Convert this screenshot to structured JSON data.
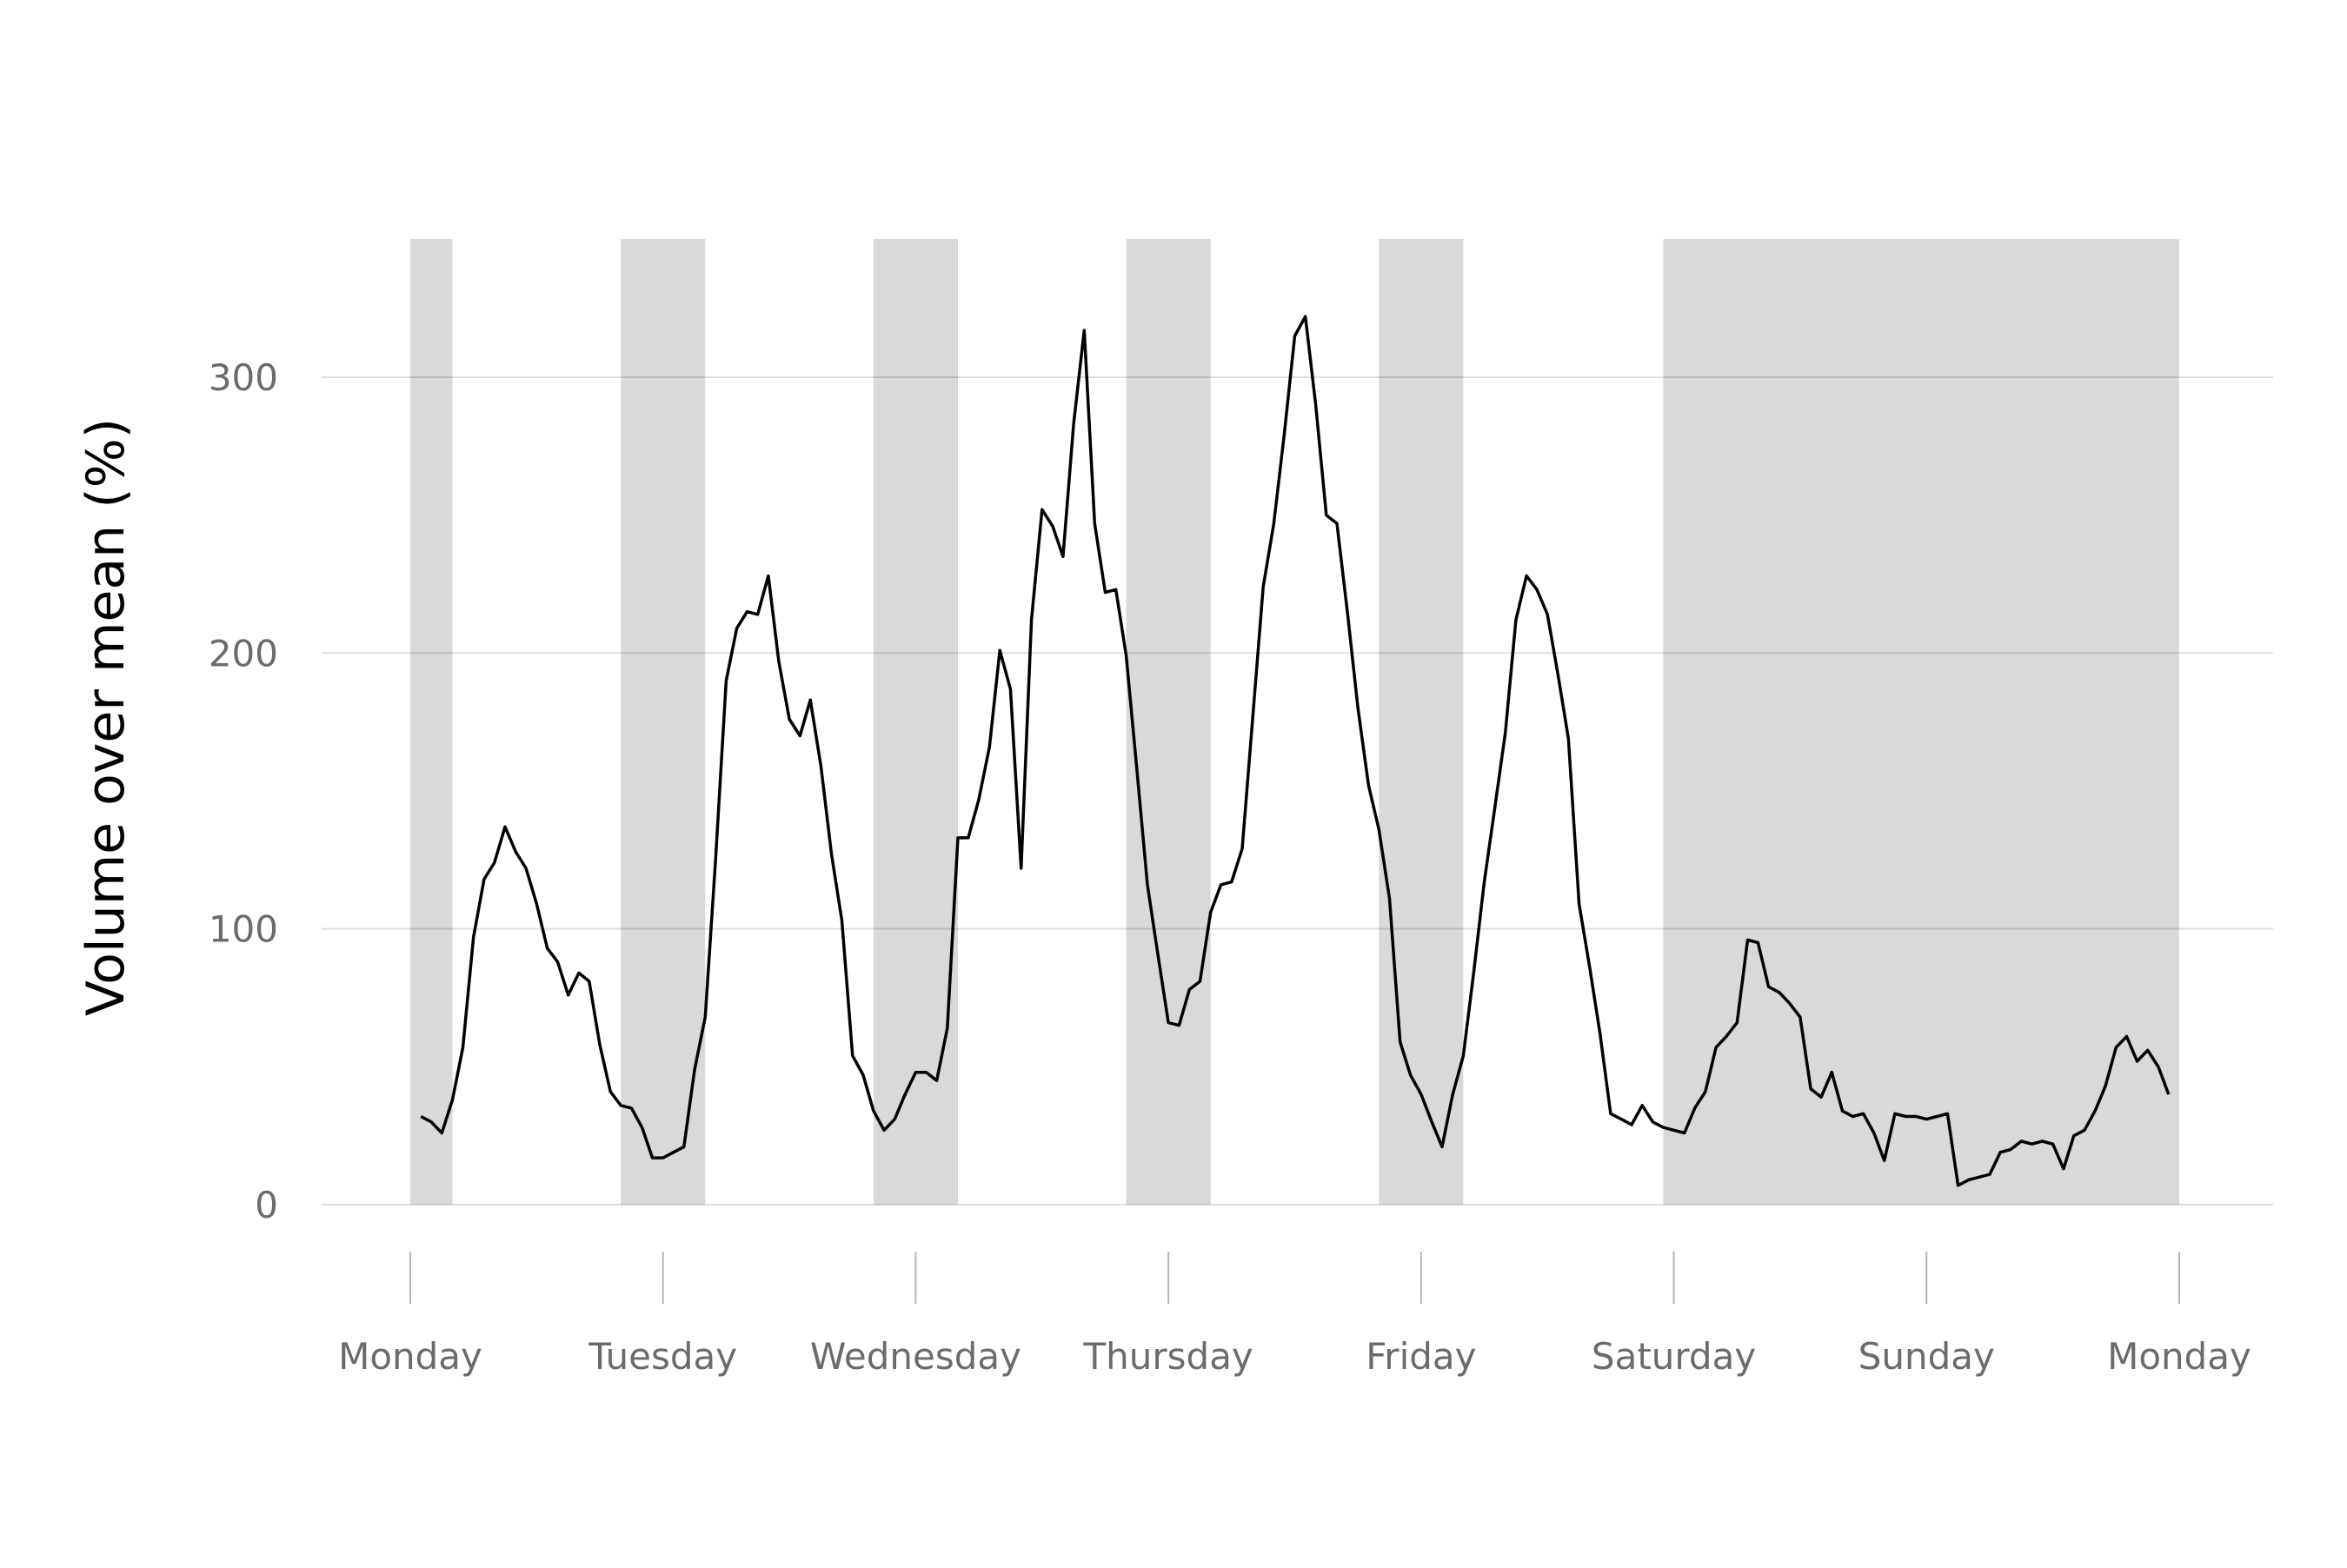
{
  "chart_data": {
    "type": "line",
    "xlabel": "",
    "ylabel": "Volume over mean (%)",
    "ylim": [
      0,
      350
    ],
    "xlim_days": [
      0,
      7
    ],
    "grid": "horizontal",
    "legend": "none",
    "colors": {
      "line": "#000000",
      "shade": "#d9d9d9",
      "grid": "#dddddd",
      "tick_text": "#6b6b6b",
      "axis_title": "#000000"
    },
    "y_ticks": [
      {
        "value": 0,
        "label": "0"
      },
      {
        "value": 100,
        "label": "100"
      },
      {
        "value": 200,
        "label": "200"
      },
      {
        "value": 300,
        "label": "300"
      }
    ],
    "x_ticks": [
      {
        "value": 0,
        "label": "Monday"
      },
      {
        "value": 1,
        "label": "Tuesday"
      },
      {
        "value": 2,
        "label": "Wednesday"
      },
      {
        "value": 3,
        "label": "Thursday"
      },
      {
        "value": 4,
        "label": "Friday"
      },
      {
        "value": 5,
        "label": "Saturday"
      },
      {
        "value": 6,
        "label": "Sunday"
      },
      {
        "value": 7,
        "label": "Monday"
      }
    ],
    "shaded_ranges": [
      {
        "start": 0.0,
        "end": 0.167
      },
      {
        "start": 0.833,
        "end": 1.167
      },
      {
        "start": 1.833,
        "end": 2.167
      },
      {
        "start": 2.833,
        "end": 3.167
      },
      {
        "start": 3.833,
        "end": 4.167
      },
      {
        "start": 4.958,
        "end": 7.0
      }
    ],
    "series": [
      {
        "x": [
          0.042,
          0.083,
          0.125,
          0.167,
          0.208,
          0.25,
          0.292,
          0.333,
          0.375,
          0.417,
          0.458,
          0.5,
          0.542,
          0.583,
          0.625,
          0.667,
          0.708,
          0.75,
          0.792,
          0.833,
          0.875,
          0.917,
          0.958,
          1.0,
          1.042,
          1.083,
          1.125,
          1.167,
          1.208,
          1.25,
          1.292,
          1.333,
          1.375,
          1.417,
          1.458,
          1.5,
          1.542,
          1.583,
          1.625,
          1.667,
          1.708,
          1.75,
          1.792,
          1.833,
          1.875,
          1.917,
          1.958,
          2.0,
          2.042,
          2.083,
          2.125,
          2.167,
          2.208,
          2.25,
          2.292,
          2.333,
          2.375,
          2.417,
          2.458,
          2.5,
          2.542,
          2.583,
          2.625,
          2.667,
          2.708,
          2.75,
          2.792,
          2.833,
          2.875,
          2.917,
          2.958,
          3.0,
          3.042,
          3.083,
          3.125,
          3.167,
          3.208,
          3.25,
          3.292,
          3.333,
          3.375,
          3.417,
          3.458,
          3.5,
          3.542,
          3.583,
          3.625,
          3.667,
          3.708,
          3.75,
          3.792,
          3.833,
          3.875,
          3.917,
          3.958,
          4.0,
          4.042,
          4.083,
          4.125,
          4.167,
          4.208,
          4.25,
          4.292,
          4.333,
          4.375,
          4.417,
          4.458,
          4.5,
          4.542,
          4.583,
          4.625,
          4.667,
          4.708,
          4.75,
          4.792,
          4.833,
          4.875,
          4.917,
          4.958,
          5.0,
          5.042,
          5.083,
          5.125,
          5.167,
          5.208,
          5.25,
          5.292,
          5.333,
          5.375,
          5.417,
          5.458,
          5.5,
          5.542,
          5.583,
          5.625,
          5.667,
          5.708,
          5.75,
          5.792,
          5.833,
          5.875,
          5.917,
          5.958,
          6.0,
          6.042,
          6.083,
          6.125,
          6.167,
          6.208,
          6.25,
          6.292,
          6.333,
          6.375,
          6.417,
          6.458,
          6.5,
          6.542,
          6.583,
          6.625,
          6.667,
          6.708,
          6.75,
          6.792,
          6.833,
          6.875,
          6.917,
          6.958
        ],
        "y": [
          32,
          30,
          26,
          38,
          57,
          97,
          118,
          124,
          137,
          128,
          122,
          109,
          93,
          88,
          76,
          84,
          81,
          58,
          41,
          36,
          35,
          28,
          17,
          17,
          19,
          21,
          49,
          68,
          125,
          190,
          209,
          215,
          214,
          228,
          197,
          176,
          170,
          183,
          159,
          127,
          103,
          54,
          47,
          34,
          27,
          31,
          40,
          48,
          48,
          45,
          64,
          133,
          133,
          147,
          166,
          201,
          187,
          122,
          212,
          252,
          246,
          235,
          283,
          317,
          247,
          222,
          223,
          199,
          158,
          116,
          91,
          66,
          65,
          78,
          81,
          106,
          116,
          117,
          129,
          176,
          224,
          247,
          279,
          315,
          322,
          290,
          250,
          247,
          215,
          180,
          152,
          136,
          111,
          59,
          47,
          40,
          30,
          21,
          40,
          54,
          84,
          117,
          144,
          171,
          212,
          228,
          223,
          214,
          192,
          169,
          109,
          86,
          62,
          33,
          31,
          29,
          36,
          30,
          28,
          27,
          26,
          35,
          41,
          57,
          61,
          66,
          96,
          95,
          79,
          77,
          73,
          68,
          42,
          39,
          48,
          34,
          32,
          33,
          26,
          16,
          33,
          32,
          32,
          31,
          32,
          33,
          7,
          9,
          10,
          11,
          19,
          20,
          23,
          22,
          23,
          22,
          13,
          25,
          27,
          34,
          43,
          57,
          61,
          52,
          56,
          50,
          40
        ]
      }
    ]
  }
}
